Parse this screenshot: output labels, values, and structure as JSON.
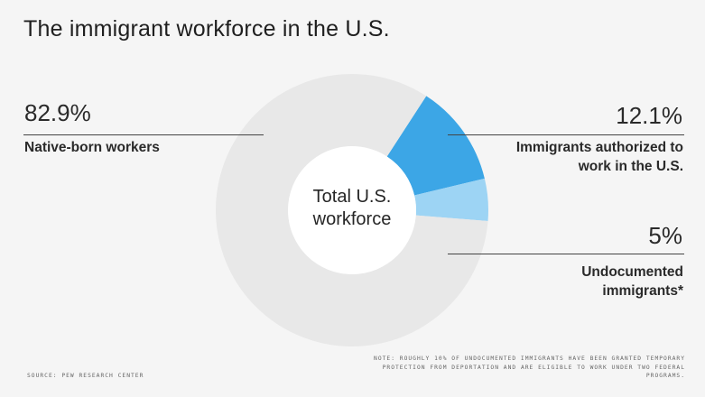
{
  "chart_data": {
    "type": "pie",
    "title": "The immigrant workforce in the U.S.",
    "center_label": "Total U.S. workforce",
    "slices": [
      {
        "label": "Native-born workers",
        "value": 82.9,
        "value_label": "82.9%",
        "color": "#e8e8e8"
      },
      {
        "label": "Immigrants authorized to work in the U.S.",
        "value": 12.1,
        "value_label": "12.1%",
        "color": "#3ca6e6"
      },
      {
        "label": "Undocumented immigrants*",
        "value": 5,
        "value_label": "5%",
        "color": "#9dd4f4"
      }
    ]
  },
  "footer": {
    "note": "Note: Roughly 10% of undocumented immigrants have been granted temporary protection from deportation and are eligible to work under two federal programs.",
    "source": "Source: Pew Research Center"
  },
  "colors": {
    "background": "#f5f5f5",
    "text": "#262626",
    "rule": "#444444"
  }
}
